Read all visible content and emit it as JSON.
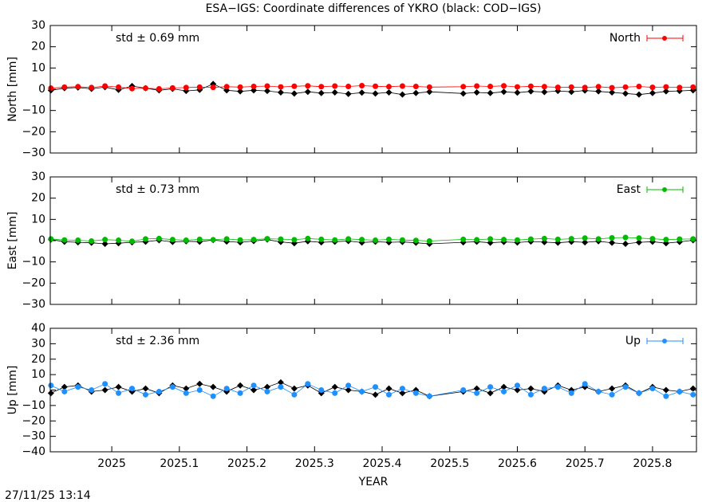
{
  "title": "ESA−IGS: Coordinate differences of YKRO (black: COD−IGS)",
  "timestamp": "27/11/25 13:14",
  "chart_data": [
    {
      "type": "line",
      "ylabel": "North [mm]",
      "annotation": "std ± 0.69 mm",
      "legend": "upper right",
      "x": [
        2024.91,
        2024.93,
        2024.95,
        2024.97,
        2024.99,
        2025.01,
        2025.03,
        2025.05,
        2025.07,
        2025.09,
        2025.11,
        2025.13,
        2025.15,
        2025.17,
        2025.19,
        2025.21,
        2025.23,
        2025.25,
        2025.27,
        2025.29,
        2025.31,
        2025.33,
        2025.35,
        2025.37,
        2025.39,
        2025.41,
        2025.43,
        2025.45,
        2025.47,
        2025.52,
        2025.54,
        2025.56,
        2025.58,
        2025.6,
        2025.62,
        2025.64,
        2025.66,
        2025.68,
        2025.7,
        2025.72,
        2025.74,
        2025.76,
        2025.78,
        2025.8,
        2025.82,
        2025.84,
        2025.86
      ],
      "series": [
        {
          "color": "#000000",
          "values": [
            -0.5,
            0.5,
            0.8,
            0.2,
            1.0,
            -0.3,
            1.5,
            0.5,
            -0.5,
            0.2,
            -0.8,
            -0.3,
            2.5,
            -0.5,
            -1.0,
            -0.5,
            -0.8,
            -1.5,
            -2.0,
            -1.2,
            -1.8,
            -1.5,
            -2.2,
            -1.6,
            -2.0,
            -1.5,
            -2.5,
            -1.8,
            -1.2,
            -2.0,
            -1.5,
            -1.8,
            -1.2,
            -1.6,
            -1.0,
            -1.3,
            -0.8,
            -1.2,
            -0.6,
            -1.0,
            -1.5,
            -2.0,
            -2.5,
            -1.8,
            -1.0,
            -0.8,
            -0.5
          ]
        },
        {
          "name": "North",
          "color": "#ff0000",
          "values": [
            0.5,
            1.0,
            1.2,
            0.8,
            1.5,
            1.0,
            0.3,
            0.5,
            0.2,
            0.6,
            0.8,
            1.0,
            0.9,
            1.2,
            1.0,
            1.3,
            1.5,
            1.1,
            1.4,
            1.6,
            1.2,
            1.5,
            1.3,
            1.7,
            1.4,
            1.2,
            1.5,
            1.3,
            1.0,
            1.2,
            1.5,
            1.3,
            1.6,
            1.1,
            1.4,
            1.2,
            0.9,
            1.0,
            0.8,
            1.2,
            0.7,
            1.0,
            1.3,
            0.9,
            1.1,
            0.8,
            1.0
          ]
        }
      ],
      "xlim": [
        2024.909,
        2025.865
      ],
      "xticks": [
        2025,
        2025.1,
        2025.2,
        2025.3,
        2025.4,
        2025.5,
        2025.6,
        2025.7,
        2025.8
      ],
      "ylim": [
        -30,
        30
      ],
      "yticks": [
        {
          "value": -30,
          "label": "−30"
        },
        {
          "value": -20,
          "label": "−20"
        },
        {
          "value": -10,
          "label": "−10"
        },
        0,
        10,
        20,
        30
      ]
    },
    {
      "type": "line",
      "ylabel": "East [mm]",
      "annotation": "std ± 0.73 mm",
      "legend": "upper right",
      "x": [
        2024.91,
        2024.93,
        2024.95,
        2024.97,
        2024.99,
        2025.01,
        2025.03,
        2025.05,
        2025.07,
        2025.09,
        2025.11,
        2025.13,
        2025.15,
        2025.17,
        2025.19,
        2025.21,
        2025.23,
        2025.25,
        2025.27,
        2025.29,
        2025.31,
        2025.33,
        2025.35,
        2025.37,
        2025.39,
        2025.41,
        2025.43,
        2025.45,
        2025.47,
        2025.52,
        2025.54,
        2025.56,
        2025.58,
        2025.6,
        2025.62,
        2025.64,
        2025.66,
        2025.68,
        2025.7,
        2025.72,
        2025.74,
        2025.76,
        2025.78,
        2025.8,
        2025.82,
        2025.84,
        2025.86
      ],
      "series": [
        {
          "color": "#000000",
          "values": [
            0.5,
            -0.5,
            -0.8,
            -1.0,
            -1.5,
            -1.2,
            -0.8,
            -0.5,
            0.2,
            -0.6,
            -0.3,
            -0.5,
            0.3,
            -0.4,
            -0.8,
            -0.2,
            0.5,
            -0.6,
            -1.2,
            -0.3,
            -0.8,
            -0.5,
            -0.2,
            -0.9,
            -0.5,
            -0.8,
            -0.6,
            -1.0,
            -1.5,
            -0.8,
            -0.5,
            -1.0,
            -0.6,
            -0.9,
            -0.4,
            -0.7,
            -1.0,
            -0.5,
            -0.8,
            -0.3,
            -1.0,
            -1.5,
            -0.8,
            -0.5,
            -1.2,
            -0.6,
            0.2
          ]
        },
        {
          "name": "East",
          "color": "#00bb00",
          "values": [
            0.8,
            0.3,
            0.2,
            -0.2,
            0.5,
            0.2,
            -0.3,
            0.8,
            1.0,
            0.5,
            0.2,
            0.6,
            0.4,
            0.8,
            0.3,
            0.5,
            0.9,
            0.7,
            0.4,
            1.0,
            0.6,
            0.3,
            0.8,
            0.5,
            0.2,
            0.6,
            0.3,
            0.1,
            -0.2,
            0.6,
            0.4,
            0.8,
            0.5,
            0.3,
            0.7,
            1.0,
            0.6,
            0.9,
            1.2,
            0.8,
            1.3,
            1.5,
            1.2,
            0.9,
            0.5,
            0.7,
            0.8
          ]
        }
      ],
      "xlim": [
        2024.909,
        2025.865
      ],
      "xticks": [
        2025,
        2025.1,
        2025.2,
        2025.3,
        2025.4,
        2025.5,
        2025.6,
        2025.7,
        2025.8
      ],
      "ylim": [
        -30,
        30
      ],
      "yticks": [
        {
          "value": -30,
          "label": "−30"
        },
        {
          "value": -20,
          "label": "−20"
        },
        {
          "value": -10,
          "label": "−10"
        },
        0,
        10,
        20,
        30
      ]
    },
    {
      "type": "line",
      "ylabel": "Up [mm]",
      "annotation": "std ± 2.36 mm",
      "legend": "upper right",
      "xlabel": "YEAR",
      "x": [
        2024.91,
        2024.93,
        2024.95,
        2024.97,
        2024.99,
        2025.01,
        2025.03,
        2025.05,
        2025.07,
        2025.09,
        2025.11,
        2025.13,
        2025.15,
        2025.17,
        2025.19,
        2025.21,
        2025.23,
        2025.25,
        2025.27,
        2025.29,
        2025.31,
        2025.33,
        2025.35,
        2025.37,
        2025.39,
        2025.41,
        2025.43,
        2025.45,
        2025.47,
        2025.52,
        2025.54,
        2025.56,
        2025.58,
        2025.6,
        2025.62,
        2025.64,
        2025.66,
        2025.68,
        2025.7,
        2025.72,
        2025.74,
        2025.76,
        2025.78,
        2025.8,
        2025.82,
        2025.84,
        2025.86
      ],
      "series": [
        {
          "color": "#000000",
          "values": [
            -2,
            2,
            3,
            -1,
            0,
            2,
            -1,
            1,
            -2,
            3,
            1,
            4,
            2,
            -1,
            3,
            0,
            2,
            5,
            1,
            3,
            -2,
            2,
            0,
            -1,
            -3,
            1,
            -2,
            0,
            -4,
            -1,
            1,
            -2,
            2,
            0,
            1,
            -1,
            3,
            0,
            2,
            -1,
            1,
            3,
            -2,
            2,
            0,
            -1,
            1
          ]
        },
        {
          "name": "Up",
          "color": "#1e90ff",
          "values": [
            3,
            -1,
            2,
            0,
            4,
            -2,
            1,
            -3,
            -1,
            2,
            -2,
            0,
            -4,
            1,
            -2,
            3,
            -1,
            2,
            -3,
            4,
            0,
            -2,
            3,
            -1,
            2,
            -3,
            1,
            -2,
            -4,
            0,
            -2,
            2,
            -1,
            3,
            -3,
            1,
            2,
            -2,
            4,
            -1,
            -3,
            2,
            -2,
            1,
            -4,
            -1,
            -3
          ]
        }
      ],
      "xlim": [
        2024.909,
        2025.865
      ],
      "xticks": [
        2025,
        2025.1,
        2025.2,
        2025.3,
        2025.4,
        2025.5,
        2025.6,
        2025.7,
        2025.8
      ],
      "ylim": [
        -40,
        40
      ],
      "yticks": [
        {
          "value": -40,
          "label": "−40"
        },
        {
          "value": -30,
          "label": "−30"
        },
        {
          "value": -20,
          "label": "−20"
        },
        {
          "value": -10,
          "label": "−10"
        },
        0,
        10,
        20,
        30,
        40
      ]
    }
  ]
}
